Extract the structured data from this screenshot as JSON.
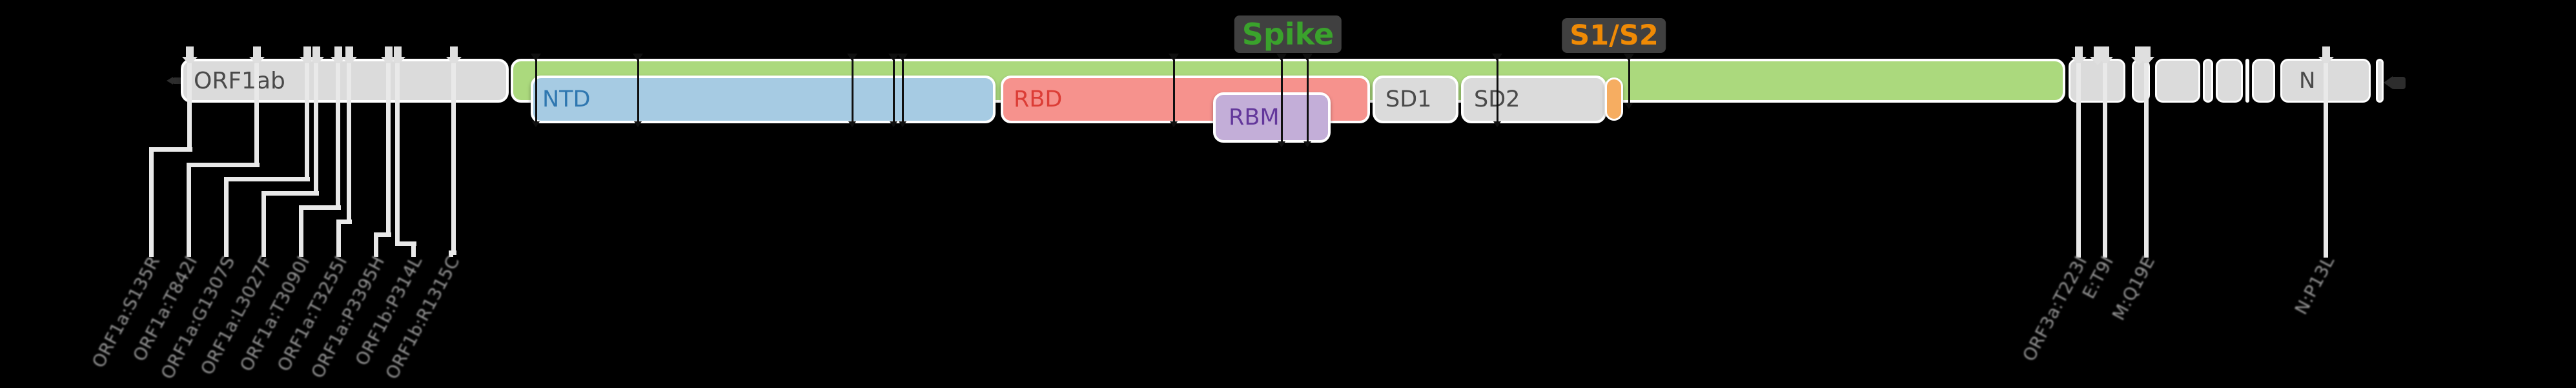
{
  "genome_map": {
    "orf1ab": {
      "label": "ORF1ab"
    },
    "spike": {
      "label": "Spike",
      "s1s2_label": "S1/S2",
      "domains": {
        "ntd": "NTD",
        "rbd": "RBD",
        "rbm": "RBM",
        "sd1": "SD1",
        "sd2": "SD2"
      }
    },
    "n_gene": {
      "label": "N"
    },
    "mutations": {
      "left_labels": [
        "ORF1a:S135R",
        "ORF1a:T842I",
        "ORF1a:G1307S",
        "ORF1a:L3027F",
        "ORF1a:T3090I",
        "ORF1a:T3255I",
        "ORF1a:P3395H",
        "ORF1b:P314L",
        "ORF1b:R1315C"
      ],
      "right_labels": [
        "ORF3a:T223I",
        "E:T9I",
        "M:Q19E",
        "N:P13L"
      ]
    },
    "colors": {
      "background": "#000000",
      "gene_box_fill": "#dbdbdb",
      "gene_text": "#4a4a4a",
      "spike_bar_fill": "#abd97d",
      "spike_label_text": "#3aa22c",
      "ntd_fill": "#a6cbe3",
      "ntd_text": "#2f77b0",
      "rbd_fill": "#f6928d",
      "rbd_text": "#dc3d36",
      "rbm_fill": "#c3aed8",
      "rbm_text": "#63379b",
      "s1s2_site_fill": "#f6ad61",
      "s1s2_label_text": "#ef8a05",
      "mutation_label_text": "#969696",
      "spike_marker_line": "#0f0f0f",
      "other_marker_line": "#e9e9e9"
    }
  }
}
